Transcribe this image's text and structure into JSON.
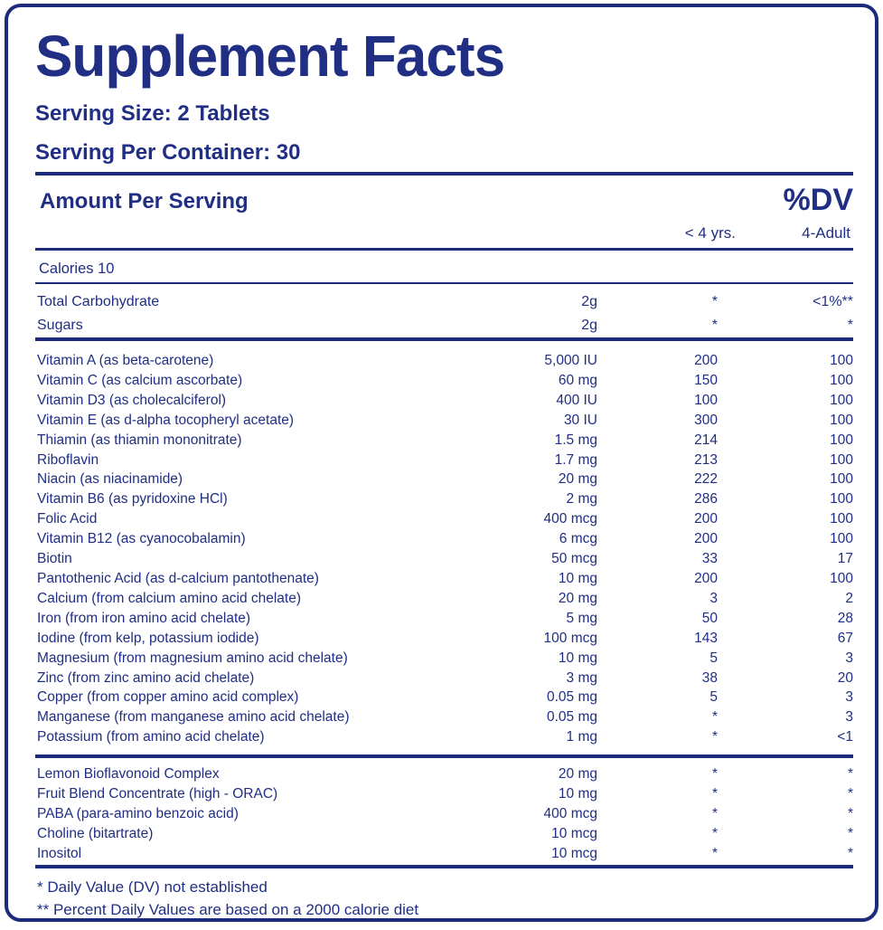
{
  "label": {
    "title": "Supplement Facts",
    "serving_size": "Serving Size: 2 Tablets",
    "servings_per_container": "Serving Per Container: 30",
    "colors": {
      "text_navy": "#202e83",
      "rule_navy": "#1d2b7d",
      "background": "#ffffff"
    }
  },
  "table": {
    "amount_header": "Amount Per Serving",
    "dv_header": "%DV",
    "age_columns": [
      "< 4 yrs.",
      "4-Adult"
    ],
    "calories": "Calories 10",
    "macronutrients": [
      {
        "name": "Total Carbohydrate",
        "amount": "2g",
        "under4": "*",
        "adult": "<1%**"
      },
      {
        "name": "Sugars",
        "amount": "2g",
        "under4": "*",
        "adult": "*"
      }
    ],
    "vitamins_minerals": [
      {
        "name": "Vitamin A (as beta-carotene)",
        "amount": "5,000 IU",
        "under4": "200",
        "adult": "100"
      },
      {
        "name": "Vitamin C (as calcium ascorbate)",
        "amount": "60 mg",
        "under4": "150",
        "adult": "100"
      },
      {
        "name": "Vitamin D3 (as cholecalciferol)",
        "amount": "400 IU",
        "under4": "100",
        "adult": "100"
      },
      {
        "name": "Vitamin E (as d-alpha tocopheryl acetate)",
        "amount": "30 IU",
        "under4": "300",
        "adult": "100"
      },
      {
        "name": "Thiamin (as thiamin mononitrate)",
        "amount": "1.5 mg",
        "under4": "214",
        "adult": "100"
      },
      {
        "name": "Riboflavin",
        "amount": "1.7 mg",
        "under4": "213",
        "adult": "100"
      },
      {
        "name": "Niacin (as niacinamide)",
        "amount": "20 mg",
        "under4": "222",
        "adult": "100"
      },
      {
        "name": "Vitamin B6 (as pyridoxine HCl)",
        "amount": "2 mg",
        "under4": "286",
        "adult": "100"
      },
      {
        "name": "Folic Acid",
        "amount": "400 mcg",
        "under4": "200",
        "adult": "100"
      },
      {
        "name": "Vitamin B12 (as cyanocobalamin)",
        "amount": "6 mcg",
        "under4": "200",
        "adult": "100"
      },
      {
        "name": "Biotin",
        "amount": "50 mcg",
        "under4": "33",
        "adult": "17"
      },
      {
        "name": "Pantothenic Acid (as d-calcium pantothenate)",
        "amount": "10 mg",
        "under4": "200",
        "adult": "100"
      },
      {
        "name": "Calcium (from calcium amino acid chelate)",
        "amount": "20 mg",
        "under4": "3",
        "adult": "2"
      },
      {
        "name": "Iron (from iron amino acid chelate)",
        "amount": "5 mg",
        "under4": "50",
        "adult": "28"
      },
      {
        "name": "Iodine (from kelp, potassium iodide)",
        "amount": "100 mcg",
        "under4": "143",
        "adult": "67"
      },
      {
        "name": "Magnesium (from magnesium amino acid chelate)",
        "amount": "10 mg",
        "under4": "5",
        "adult": "3"
      },
      {
        "name": "Zinc (from zinc amino acid chelate)",
        "amount": "3 mg",
        "under4": "38",
        "adult": "20"
      },
      {
        "name": "Copper (from copper amino acid complex)",
        "amount": "0.05 mg",
        "under4": "5",
        "adult": "3"
      },
      {
        "name": "Manganese (from manganese amino acid chelate)",
        "amount": "0.05 mg",
        "under4": "*",
        "adult": "3"
      },
      {
        "name": "Potassium (from amino acid chelate)",
        "amount": "1 mg",
        "under4": "*",
        "adult": "<1"
      }
    ],
    "other_ingredients": [
      {
        "name": "Lemon Bioflavonoid Complex",
        "amount": "20 mg",
        "under4": "*",
        "adult": "*"
      },
      {
        "name": "Fruit Blend Concentrate (high - ORAC)",
        "amount": "10 mg",
        "under4": "*",
        "adult": "*"
      },
      {
        "name": "PABA (para-amino benzoic acid)",
        "amount": "400 mcg",
        "under4": "*",
        "adult": "*"
      },
      {
        "name": "Choline (bitartrate)",
        "amount": "10 mcg",
        "under4": "*",
        "adult": "*"
      },
      {
        "name": "Inositol",
        "amount": "10 mcg",
        "under4": "*",
        "adult": "*"
      }
    ]
  },
  "footnotes": [
    "* Daily Value (DV) not established",
    "** Percent Daily Values are based on a 2000 calorie diet"
  ]
}
